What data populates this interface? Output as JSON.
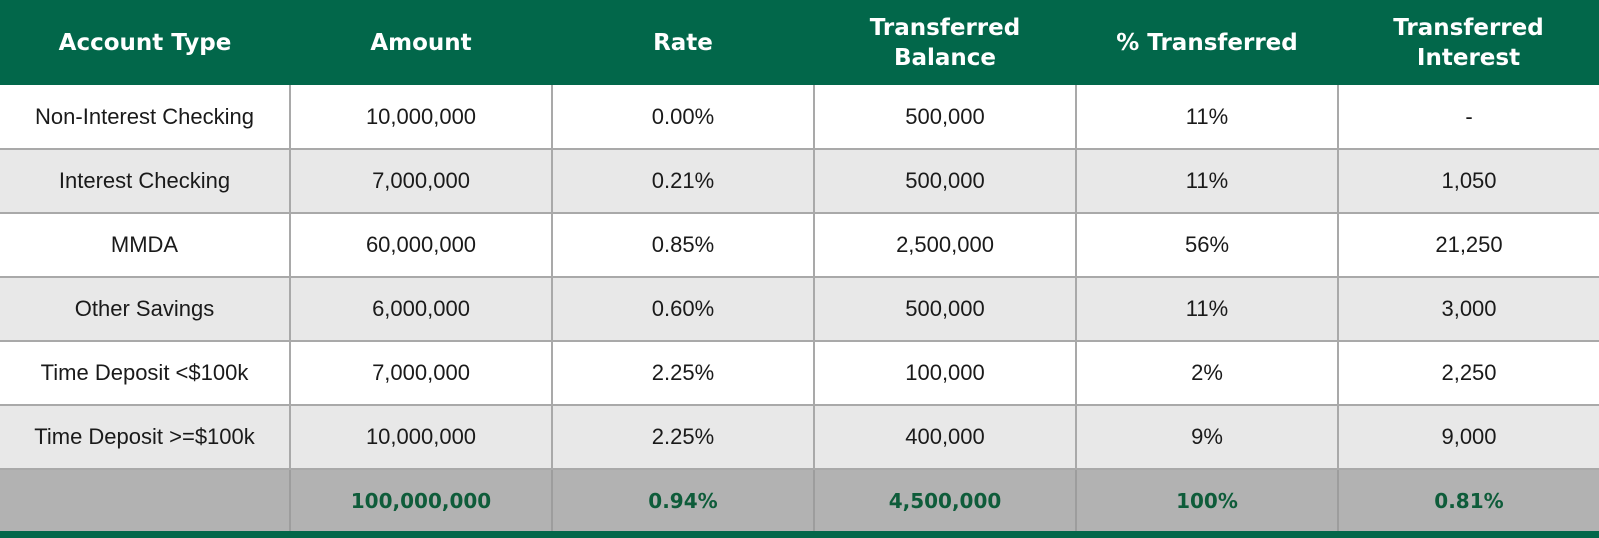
{
  "colors": {
    "header_bg": "#02674a",
    "header_text": "#ffffff",
    "row_alt_bg": "#e8e8e8",
    "total_bg": "#b2b2b2",
    "total_text": "#0e5c3a"
  },
  "table": {
    "headers": [
      "Account Type",
      "Amount",
      "Rate",
      "Transferred\nBalance",
      "% Transferred",
      "Transferred\nInterest"
    ],
    "rows": [
      [
        "Non-Interest Checking",
        "10,000,000",
        "0.00%",
        "500,000",
        "11%",
        "-"
      ],
      [
        "Interest Checking",
        "7,000,000",
        "0.21%",
        "500,000",
        "11%",
        "1,050"
      ],
      [
        "MMDA",
        "60,000,000",
        "0.85%",
        "2,500,000",
        "56%",
        "21,250"
      ],
      [
        "Other Savings",
        "6,000,000",
        "0.60%",
        "500,000",
        "11%",
        "3,000"
      ],
      [
        "Time Deposit <$100k",
        "7,000,000",
        "2.25%",
        "100,000",
        "2%",
        "2,250"
      ],
      [
        "Time Deposit >=$100k",
        "10,000,000",
        "2.25%",
        "400,000",
        "9%",
        "9,000"
      ]
    ],
    "total": [
      "",
      "100,000,000",
      "0.94%",
      "4,500,000",
      "100%",
      "0.81%"
    ]
  }
}
